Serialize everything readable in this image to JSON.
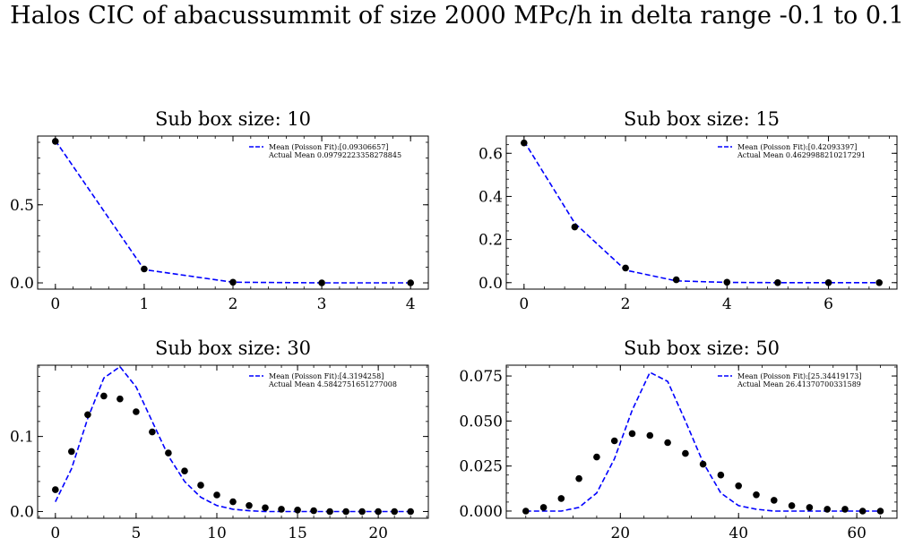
{
  "figure": {
    "title": "Halos CIC of abacussummit of size 2000 MPc/h in delta range -0.1 to 0.1"
  },
  "chart_data": [
    {
      "type": "line",
      "title": "Sub box size: 10",
      "xlim": [
        -0.2,
        4.2
      ],
      "ylim": [
        -0.04,
        0.94
      ],
      "xticks": [
        0,
        1,
        2,
        3,
        4
      ],
      "xtick_labels": [
        "0",
        "1",
        "2",
        "3",
        "4"
      ],
      "yticks": [
        0,
        0.5
      ],
      "ytick_labels": [
        "0.0",
        "0.5"
      ],
      "legend": {
        "placement": "upper right",
        "entries": [
          "Mean (Poisson Fit):[0.09306657]",
          "Actual Mean 0.09792223358278845"
        ]
      },
      "series": [
        {
          "style": "dashed-line",
          "color": "#0000ff",
          "x": [
            0,
            1,
            2,
            3,
            4
          ],
          "y": [
            0.911,
            0.085,
            0.004,
            0.0,
            0.0
          ]
        },
        {
          "style": "points",
          "color": "#000000",
          "x": [
            0,
            1,
            2,
            3,
            4
          ],
          "y": [
            0.906,
            0.089,
            0.004,
            0.0,
            0.0
          ]
        }
      ]
    },
    {
      "type": "line",
      "title": "Sub box size: 15",
      "xlim": [
        -0.35,
        7.35
      ],
      "ylim": [
        -0.03,
        0.68
      ],
      "xticks": [
        0,
        2,
        4,
        6
      ],
      "xtick_labels": [
        "0",
        "2",
        "4",
        "6"
      ],
      "yticks": [
        0,
        0.2,
        0.4,
        0.6
      ],
      "ytick_labels": [
        "0.0",
        "0.2",
        "0.4",
        "0.6"
      ],
      "legend": {
        "placement": "upper right",
        "entries": [
          "Mean (Poisson Fit):[0.42093397]",
          "Actual Mean 0.4629988210217291"
        ]
      },
      "series": [
        {
          "style": "dashed-line",
          "color": "#0000ff",
          "x": [
            0,
            1,
            2,
            3,
            4,
            5,
            6,
            7
          ],
          "y": [
            0.656,
            0.276,
            0.058,
            0.008,
            0.001,
            0.0,
            0.0,
            0.0
          ]
        },
        {
          "style": "points",
          "color": "#000000",
          "x": [
            0,
            1,
            2,
            3,
            4,
            5,
            6,
            7
          ],
          "y": [
            0.648,
            0.258,
            0.068,
            0.013,
            0.002,
            0.0,
            0.0,
            0.0
          ]
        }
      ]
    },
    {
      "type": "line",
      "title": "Sub box size: 30",
      "xlim": [
        -1.1,
        23.1
      ],
      "ylim": [
        -0.009,
        0.195
      ],
      "xticks": [
        0,
        5,
        10,
        15,
        20
      ],
      "xtick_labels": [
        "0",
        "5",
        "10",
        "15",
        "20"
      ],
      "yticks": [
        0,
        0.1
      ],
      "ytick_labels": [
        "0.0",
        "0.1"
      ],
      "legend": {
        "placement": "upper right",
        "entries": [
          "Mean (Poisson Fit):[4.3194258]",
          "Actual Mean 4.5842751651277008"
        ]
      },
      "series": [
        {
          "style": "dashed-line",
          "color": "#0000ff",
          "x": [
            0,
            1,
            2,
            3,
            4,
            5,
            6,
            7,
            8,
            9,
            10,
            11,
            12,
            13,
            14,
            15,
            16,
            17,
            18,
            19,
            20,
            21,
            22
          ],
          "y": [
            0.013,
            0.057,
            0.124,
            0.178,
            0.193,
            0.166,
            0.12,
            0.074,
            0.04,
            0.019,
            0.008,
            0.003,
            0.001,
            0.0,
            0.0,
            0.0,
            0.0,
            0.0,
            0.0,
            0.0,
            0.0,
            0.0,
            0.0
          ]
        },
        {
          "style": "points",
          "color": "#000000",
          "x": [
            0,
            1,
            2,
            3,
            4,
            5,
            6,
            7,
            8,
            9,
            10,
            11,
            12,
            13,
            14,
            15,
            16,
            17,
            18,
            19,
            20,
            21,
            22
          ],
          "y": [
            0.029,
            0.08,
            0.129,
            0.154,
            0.15,
            0.133,
            0.106,
            0.078,
            0.054,
            0.035,
            0.022,
            0.013,
            0.008,
            0.005,
            0.003,
            0.002,
            0.001,
            0.0,
            0.0,
            0.0,
            0.0,
            0.0,
            0.0
          ]
        }
      ]
    },
    {
      "type": "line",
      "title": "Sub box size: 50",
      "xlim": [
        0.7,
        66.8
      ],
      "ylim": [
        -0.004,
        0.081
      ],
      "xticks": [
        20,
        40,
        60
      ],
      "xtick_labels": [
        "20",
        "40",
        "60"
      ],
      "yticks": [
        0,
        0.025,
        0.05,
        0.075
      ],
      "ytick_labels": [
        "0.000",
        "0.025",
        "0.050",
        "0.075"
      ],
      "legend": {
        "placement": "upper right",
        "entries": [
          "Mean (Poisson Fit):[25.34419173]",
          "Actual Mean 26.41370700331589"
        ]
      },
      "series": [
        {
          "style": "dashed-line",
          "color": "#0000ff",
          "x": [
            4,
            7,
            10,
            13,
            16,
            19,
            22,
            25,
            28,
            31,
            34,
            37,
            40,
            43,
            46,
            49,
            52,
            55,
            58,
            61,
            64
          ],
          "y": [
            0.0,
            0.0,
            0.0,
            0.002,
            0.01,
            0.029,
            0.056,
            0.077,
            0.072,
            0.05,
            0.027,
            0.01,
            0.003,
            0.001,
            0.0,
            0.0,
            0.0,
            0.0,
            0.0,
            0.0,
            0.0
          ]
        },
        {
          "style": "points",
          "color": "#000000",
          "x": [
            4,
            7,
            10,
            13,
            16,
            19,
            22,
            25,
            28,
            31,
            34,
            37,
            40,
            43,
            46,
            49,
            52,
            55,
            58,
            61,
            64
          ],
          "y": [
            0.0,
            0.002,
            0.007,
            0.018,
            0.03,
            0.039,
            0.043,
            0.042,
            0.038,
            0.032,
            0.026,
            0.02,
            0.014,
            0.009,
            0.006,
            0.003,
            0.002,
            0.001,
            0.001,
            0.0,
            0.0
          ]
        }
      ]
    }
  ]
}
